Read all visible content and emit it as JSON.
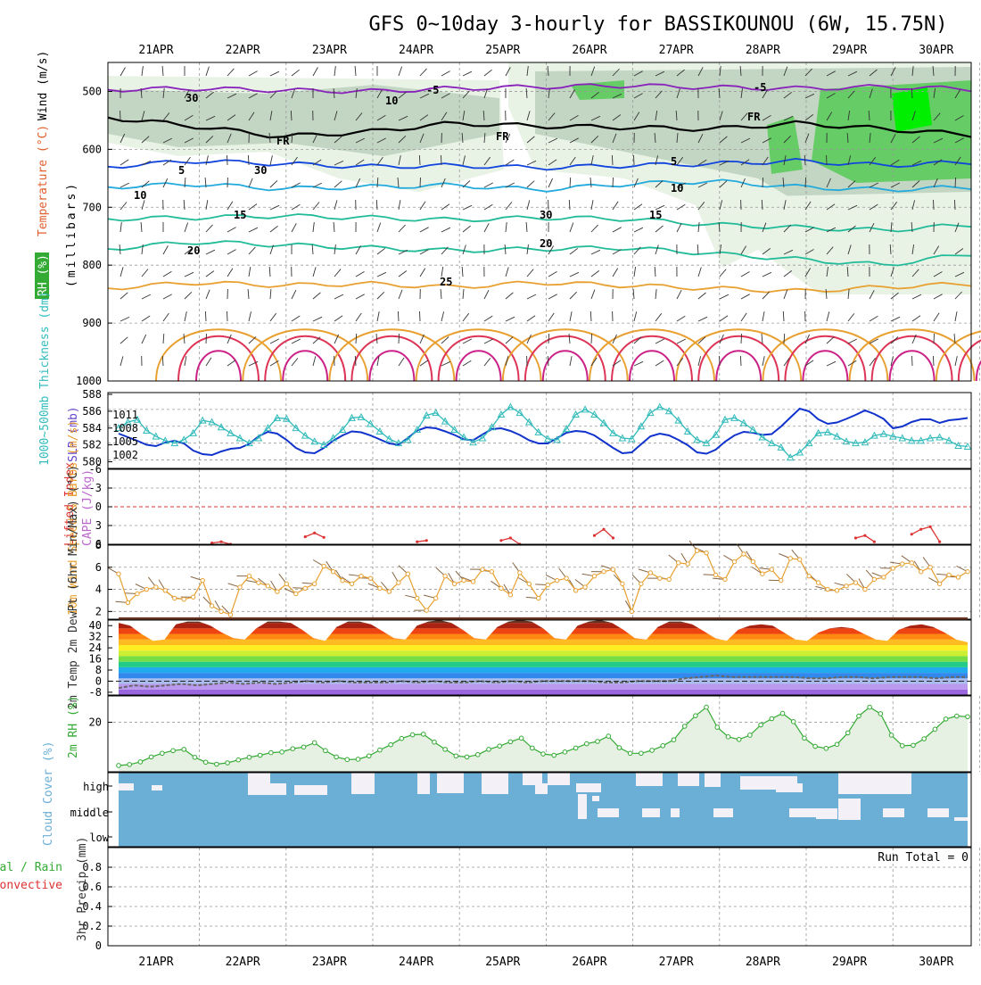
{
  "title": "GFS 0~10day 3-hourly for BASSIKOUNOU (6W, 15.75N)",
  "dates": [
    "21APR",
    "22APR",
    "23APR",
    "24APR",
    "25APR",
    "26APR",
    "27APR",
    "28APR",
    "29APR",
    "30APR"
  ],
  "colors": {
    "grid": "#aaaaaa",
    "rh_light": "#e8f3e6",
    "rh_mid": "#c3d6c3",
    "rh_green": "#66cc66",
    "rh_bright": "#00ee00",
    "purple": "#8822bb",
    "blue": "#1144dd",
    "cyan": "#22aadd",
    "teal": "#22bb99",
    "orange": "#e8a030",
    "red": "#dd3355",
    "thickness": "#33bbbb",
    "slp": "#1133cc",
    "lifted": "#dd3333",
    "wind": "#e8a030",
    "barb": "#886644",
    "rh2m": "#33aa33",
    "cloud": "#6baed6",
    "cloud_gap": "#f4f0f8",
    "precip_label": "#33aa33",
    "conv_label": "#dd3333"
  },
  "chart_data": [
    {
      "panel": "upper_air",
      "type": "heatmap",
      "ylabel": "(millibars)",
      "yticks": [
        500,
        600,
        700,
        800,
        900,
        1000
      ],
      "ylim": [
        1000,
        450
      ],
      "labels": {
        "wind": "Wind (m/s)",
        "temp": "Temperature (°C)",
        "rh": "RH (%)"
      },
      "contour_labels": [
        "-5",
        "-5",
        "FR",
        "FR",
        "FR",
        "5",
        "5",
        "10",
        "10",
        "15",
        "15",
        "20",
        "20",
        "25",
        "30",
        "30",
        "30",
        "10"
      ],
      "isotherms": [
        {
          "name": "-5",
          "p": [
            497,
            495,
            498,
            500,
            495,
            492,
            490,
            493,
            495,
            492,
            496
          ]
        },
        {
          "name": "FR",
          "p": [
            545,
            560,
            578,
            570,
            555,
            560,
            562,
            565,
            555,
            565,
            575
          ]
        },
        {
          "name": "5",
          "p": [
            630,
            620,
            625,
            630,
            628,
            632,
            628,
            625,
            620,
            628,
            622
          ]
        },
        {
          "name": "10",
          "p": [
            665,
            660,
            668,
            665,
            662,
            670,
            660,
            655,
            665,
            670,
            665
          ]
        },
        {
          "name": "15",
          "p": [
            720,
            718,
            715,
            718,
            722,
            718,
            720,
            730,
            735,
            740,
            730
          ]
        },
        {
          "name": "20",
          "p": [
            772,
            760,
            765,
            770,
            775,
            772,
            770,
            780,
            790,
            800,
            780
          ]
        },
        {
          "name": "25",
          "p": [
            840,
            830,
            835,
            832,
            838,
            830,
            835,
            840,
            845,
            838,
            832
          ]
        }
      ]
    },
    {
      "panel": "thickness_slp",
      "type": "line",
      "ylabel_left": "1000~500mb Thickness (dm)",
      "ylabel_right": "SLP (mb)",
      "yticks_left": [
        580,
        582,
        584,
        586,
        588
      ],
      "yticks_right": [
        1002,
        1005,
        1008,
        1011
      ],
      "ylim": [
        579,
        588
      ],
      "series": [
        {
          "name": "Thickness",
          "unit": "dm",
          "values": [
            583.8,
            584.5,
            584.8,
            583.5,
            582.8,
            582.3,
            582.0,
            582.4,
            583.2,
            584.7,
            584.5,
            583.9,
            583.2,
            582.6,
            582.0,
            582.6,
            583.8,
            585.0,
            584.9,
            583.8,
            582.9,
            582.2,
            581.8,
            582.6,
            583.6,
            585.0,
            585.1,
            584.3,
            583.4,
            582.5,
            582.0,
            582.4,
            583.6,
            585.3,
            585.6,
            584.6,
            583.6,
            582.7,
            582.1,
            582.6,
            583.9,
            585.4,
            586.3,
            585.6,
            584.5,
            583.3,
            582.5,
            582.4,
            583.7,
            585.4,
            586.0,
            585.4,
            584.4,
            583.2,
            582.6,
            582.5,
            584.0,
            585.6,
            586.3,
            585.8,
            584.7,
            583.4,
            582.4,
            582.0,
            583.0,
            584.8,
            585.0,
            584.4,
            583.6,
            582.7,
            582.0,
            581.5,
            580.3,
            580.9,
            582.0,
            583.2,
            583.3,
            582.8,
            582.2,
            582.0,
            582.1,
            582.9,
            583.1,
            582.8,
            582.6,
            582.3,
            582.3,
            582.6,
            582.7,
            582.3,
            581.7,
            581.6
          ]
        },
        {
          "name": "SLP",
          "unit": "mb",
          "values": [
            1006.8,
            1006.0,
            1005.2,
            1004.3,
            1004.0,
            1004.8,
            1005.2,
            1004.6,
            1003.0,
            1002.2,
            1002.0,
            1002.8,
            1003.4,
            1003.6,
            1004.5,
            1006.2,
            1007.2,
            1006.8,
            1005.4,
            1003.6,
            1002.6,
            1002.4,
            1003.6,
            1005.2,
            1006.4,
            1007.3,
            1007.1,
            1006.4,
            1005.5,
            1004.6,
            1004.3,
            1005.8,
            1007.5,
            1008.2,
            1008.0,
            1007.3,
            1006.5,
            1005.5,
            1005.3,
            1006.6,
            1007.8,
            1008.0,
            1007.4,
            1006.5,
            1005.3,
            1004.6,
            1004.6,
            1005.8,
            1007.0,
            1007.4,
            1007.2,
            1006.4,
            1005.0,
            1003.6,
            1002.4,
            1002.6,
            1004.4,
            1006.2,
            1006.8,
            1006.4,
            1005.4,
            1004.2,
            1002.6,
            1002.3,
            1003.2,
            1005.0,
            1006.4,
            1007.2,
            1007.0,
            1006.5,
            1006.7,
            1008.4,
            1010.4,
            1012.4,
            1011.8,
            1010.0,
            1009.0,
            1009.3,
            1010.1,
            1011.0,
            1012.0,
            1011.2,
            1010.1,
            1008.0,
            1008.4,
            1009.4,
            1010.0,
            1010.0,
            1009.2,
            1009.8,
            1010.0,
            1010.3
          ]
        }
      ]
    },
    {
      "panel": "lifted_cape",
      "type": "line",
      "ylabel_left": "Lifted Index",
      "ylabel_right": "CAPE (J/kg)",
      "yticks": [
        -6,
        -3,
        0,
        3,
        6
      ],
      "ylim": [
        6,
        -6
      ],
      "series": [
        {
          "name": "Lifted Index",
          "values": [
            null,
            null,
            null,
            null,
            null,
            null,
            null,
            null,
            null,
            null,
            5.8,
            5.6,
            6.0,
            null,
            null,
            null,
            null,
            null,
            null,
            null,
            4.8,
            4.2,
            4.9,
            null,
            null,
            null,
            null,
            null,
            null,
            null,
            null,
            null,
            5.6,
            5.4,
            null,
            null,
            null,
            null,
            null,
            null,
            null,
            5.4,
            5.0,
            6.0,
            null,
            null,
            null,
            null,
            null,
            null,
            null,
            4.6,
            3.6,
            5.0,
            null,
            null,
            null,
            null,
            null,
            null,
            null,
            null,
            null,
            null,
            null,
            null,
            null,
            null,
            null,
            null,
            null,
            null,
            null,
            null,
            null,
            null,
            null,
            null,
            null,
            5.0,
            4.6,
            5.6,
            null,
            null,
            null,
            4.4,
            3.6,
            3.2,
            5.6,
            null,
            null,
            null
          ]
        }
      ]
    },
    {
      "panel": "wind10m",
      "type": "line",
      "ylabel": "10m Wind Speed & Barbs (m/s)",
      "yticks": [
        2,
        4,
        6,
        8
      ],
      "ylim": [
        1.3,
        8
      ],
      "series": [
        {
          "name": "10m Wind Speed",
          "unit": "m/s",
          "values": [
            5.4,
            2.8,
            3.6,
            4.0,
            4.2,
            3.9,
            3.2,
            3.1,
            3.3,
            4.8,
            2.5,
            2.0,
            1.7,
            4.2,
            5.2,
            4.6,
            4.3,
            3.8,
            4.5,
            3.6,
            4.1,
            4.5,
            6.1,
            5.6,
            4.8,
            4.5,
            5.2,
            5.0,
            4.1,
            3.8,
            4.6,
            5.4,
            3.2,
            2.1,
            3.2,
            5.2,
            4.5,
            4.8,
            4.7,
            5.8,
            5.6,
            4.1,
            3.5,
            5.5,
            4.5,
            3.2,
            4.4,
            4.8,
            5.0,
            3.9,
            4.2,
            5.2,
            5.6,
            5.8,
            4.5,
            2.0,
            4.5,
            5.5,
            5.0,
            4.9,
            6.4,
            6.3,
            7.5,
            7.3,
            5.3,
            4.9,
            6.5,
            7.2,
            6.5,
            5.4,
            5.8,
            4.8,
            6.8,
            6.7,
            5.2,
            4.6,
            4.0,
            3.9,
            4.3,
            4.6,
            4.0,
            4.9,
            5.1,
            5.9,
            6.3,
            6.4,
            5.6,
            6.0,
            4.5,
            5.3,
            5.1,
            5.6
          ]
        }
      ]
    },
    {
      "panel": "temp2m",
      "type": "area",
      "ylabel": "2m Temp 2m DewPt (6hr Min/Max) (°C)",
      "yticks": [
        -8,
        0,
        8,
        16,
        24,
        32,
        40
      ],
      "ylim": [
        -10,
        44
      ],
      "series": [
        {
          "name": "2m Temp Max",
          "unit": "°C",
          "values": [
            42,
            40,
            34,
            29,
            30,
            41,
            43,
            43,
            40,
            35,
            31,
            30,
            38,
            43,
            43,
            42,
            37,
            31,
            29,
            39,
            43,
            43,
            41,
            36,
            31,
            30,
            40,
            43,
            44,
            42,
            37,
            31,
            30,
            39,
            43,
            44,
            43,
            38,
            31,
            30,
            40,
            43,
            44,
            42,
            37,
            31,
            30,
            39,
            43,
            43,
            41,
            36,
            31,
            29,
            37,
            40,
            41,
            40,
            35,
            30,
            29,
            35,
            38,
            39,
            38,
            34,
            30,
            29,
            37,
            40,
            41,
            39,
            35,
            30,
            28
          ]
        },
        {
          "name": "2m DewPt",
          "unit": "°C",
          "values": [
            -5,
            -3,
            -4,
            -3,
            -2,
            -3,
            -2,
            -1,
            -2,
            -1,
            -2,
            -1,
            0,
            -1,
            0,
            -1,
            -1,
            -1,
            0,
            -1,
            0,
            -1,
            -1,
            0,
            -1,
            0,
            -1,
            0,
            0,
            0,
            0,
            -1,
            -1,
            0,
            0,
            0,
            2,
            3,
            4,
            3,
            3,
            3,
            3,
            3,
            2,
            2,
            3,
            3,
            2,
            3,
            3,
            3,
            2,
            3,
            3
          ]
        }
      ]
    },
    {
      "panel": "rh2m",
      "type": "area",
      "ylabel": "2m RH (%)",
      "yticks": [
        20
      ],
      "ylim": [
        5,
        28
      ],
      "series": [
        {
          "name": "2m RH",
          "unit": "%",
          "values": [
            6.9,
            7.2,
            8.0,
            9.5,
            10.6,
            11.4,
            11.8,
            9.4,
            7.9,
            7.3,
            7.7,
            8.6,
            9.4,
            10.0,
            10.8,
            11.0,
            12.0,
            12.5,
            13.8,
            11.4,
            9.5,
            8.7,
            8.8,
            9.8,
            11.6,
            13.2,
            15.1,
            16.2,
            16.4,
            14.0,
            11.8,
            9.8,
            9.5,
            10.2,
            11.8,
            12.8,
            14.1,
            15.2,
            12.2,
            10.4,
            10.0,
            11.0,
            12.2,
            13.5,
            14.2,
            15.8,
            12.3,
            10.6,
            10.6,
            11.5,
            12.9,
            14.7,
            18.8,
            22.0,
            24.6,
            18.5,
            15.6,
            14.8,
            16.1,
            19.2,
            21.1,
            22.7,
            20.2,
            15.2,
            12.7,
            12.1,
            13.3,
            16.8,
            21.9,
            24.6,
            22.6,
            16.1,
            12.9,
            13.0,
            15.0,
            17.9,
            21.0,
            21.9,
            21.7
          ]
        }
      ]
    },
    {
      "panel": "cloud",
      "type": "bar",
      "ylabel": "Cloud Cover (%)",
      "categories": [
        "high",
        "middle",
        "low"
      ]
    },
    {
      "panel": "precip",
      "type": "bar",
      "ylabel_left": "Total / Rain Convective",
      "ylabel_right": "3hr Precip (mm)",
      "yticks": [
        0,
        0.2,
        0.4,
        0.6,
        0.8
      ],
      "ylim": [
        0,
        1
      ],
      "run_total": "Run Total = 0",
      "values": []
    }
  ]
}
